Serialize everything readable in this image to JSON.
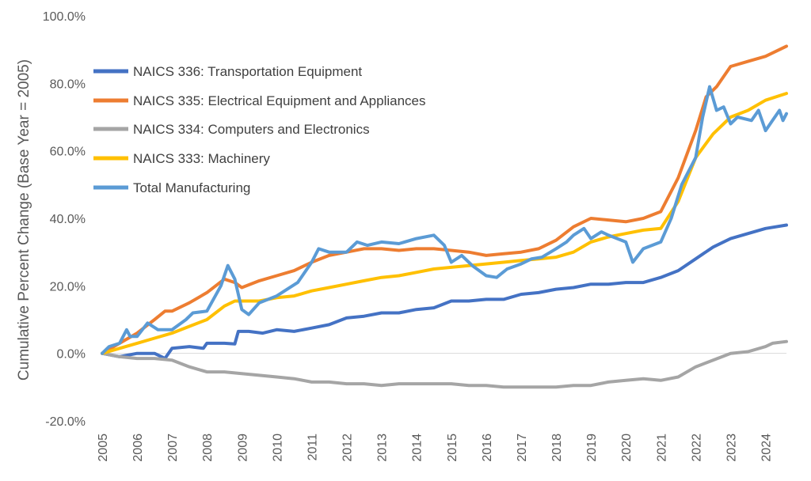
{
  "chart_data": {
    "type": "line",
    "title": "",
    "xlabel": "",
    "ylabel": "Cumulative Percent Change (Base Year = 2005)",
    "xlim": [
      2005,
      2024.6
    ],
    "ylim": [
      -20,
      100
    ],
    "x_ticks": [
      "2005",
      "2006",
      "2007",
      "2008",
      "2009",
      "2010",
      "2011",
      "2012",
      "2013",
      "2014",
      "2015",
      "2016",
      "2017",
      "2018",
      "2019",
      "2020",
      "2021",
      "2022",
      "2023",
      "2024"
    ],
    "y_ticks": [
      "-20.0%",
      "0.0%",
      "20.0%",
      "40.0%",
      "60.0%",
      "80.0%",
      "100.0%"
    ],
    "grid": false,
    "legend_position": "top-left",
    "series": [
      {
        "name": "NAICS 336: Transportation Equipment",
        "color": "#4472C4",
        "points": [
          [
            2005,
            0
          ],
          [
            2005.5,
            -1
          ],
          [
            2006,
            0
          ],
          [
            2006.5,
            0
          ],
          [
            2006.8,
            -1.5
          ],
          [
            2007,
            1.5
          ],
          [
            2007.5,
            2
          ],
          [
            2007.9,
            1.5
          ],
          [
            2008,
            3
          ],
          [
            2008.5,
            3
          ],
          [
            2008.8,
            2.8
          ],
          [
            2008.9,
            6.5
          ],
          [
            2009.2,
            6.5
          ],
          [
            2009.6,
            6
          ],
          [
            2010,
            7
          ],
          [
            2010.5,
            6.5
          ],
          [
            2011,
            7.5
          ],
          [
            2011.5,
            8.5
          ],
          [
            2012,
            10.5
          ],
          [
            2012.5,
            11
          ],
          [
            2013,
            12
          ],
          [
            2013.5,
            12
          ],
          [
            2014,
            13
          ],
          [
            2014.5,
            13.5
          ],
          [
            2015,
            15.5
          ],
          [
            2015.5,
            15.5
          ],
          [
            2016,
            16
          ],
          [
            2016.5,
            16
          ],
          [
            2017,
            17.5
          ],
          [
            2017.5,
            18
          ],
          [
            2018,
            19
          ],
          [
            2018.5,
            19.5
          ],
          [
            2019,
            20.5
          ],
          [
            2019.5,
            20.5
          ],
          [
            2020,
            21
          ],
          [
            2020.5,
            21
          ],
          [
            2021,
            22.5
          ],
          [
            2021.5,
            24.5
          ],
          [
            2022,
            28
          ],
          [
            2022.5,
            31.5
          ],
          [
            2023,
            34
          ],
          [
            2023.5,
            35.5
          ],
          [
            2024,
            37
          ],
          [
            2024.6,
            38
          ]
        ]
      },
      {
        "name": "NAICS 335: Electrical Equipment and Appliances",
        "color": "#ED7D31",
        "points": [
          [
            2005,
            0
          ],
          [
            2005.5,
            3
          ],
          [
            2006,
            6
          ],
          [
            2006.5,
            10
          ],
          [
            2006.8,
            12.5
          ],
          [
            2007,
            12.5
          ],
          [
            2007.5,
            15
          ],
          [
            2008,
            18
          ],
          [
            2008.5,
            22
          ],
          [
            2008.8,
            21
          ],
          [
            2009,
            19.5
          ],
          [
            2009.5,
            21.5
          ],
          [
            2010,
            23
          ],
          [
            2010.5,
            24.5
          ],
          [
            2011,
            27
          ],
          [
            2011.5,
            29
          ],
          [
            2012,
            30
          ],
          [
            2012.5,
            31
          ],
          [
            2013,
            31
          ],
          [
            2013.5,
            30.5
          ],
          [
            2014,
            31
          ],
          [
            2014.5,
            31
          ],
          [
            2015,
            30.5
          ],
          [
            2015.5,
            30
          ],
          [
            2016,
            29
          ],
          [
            2016.5,
            29.5
          ],
          [
            2017,
            30
          ],
          [
            2017.5,
            31
          ],
          [
            2018,
            33.5
          ],
          [
            2018.5,
            37.5
          ],
          [
            2019,
            40
          ],
          [
            2019.5,
            39.5
          ],
          [
            2020,
            39
          ],
          [
            2020.5,
            40
          ],
          [
            2021,
            42
          ],
          [
            2021.5,
            52
          ],
          [
            2022,
            66
          ],
          [
            2022.3,
            76
          ],
          [
            2022.6,
            79
          ],
          [
            2023,
            85
          ],
          [
            2023.5,
            86.5
          ],
          [
            2024,
            88
          ],
          [
            2024.6,
            91
          ]
        ]
      },
      {
        "name": "NAICS 334: Computers and Electronics",
        "color": "#A5A5A5",
        "points": [
          [
            2005,
            0
          ],
          [
            2005.5,
            -1
          ],
          [
            2006,
            -1.5
          ],
          [
            2006.5,
            -1.5
          ],
          [
            2007,
            -2
          ],
          [
            2007.5,
            -4
          ],
          [
            2008,
            -5.5
          ],
          [
            2008.5,
            -5.5
          ],
          [
            2009,
            -6
          ],
          [
            2009.5,
            -6.5
          ],
          [
            2010,
            -7
          ],
          [
            2010.5,
            -7.5
          ],
          [
            2011,
            -8.5
          ],
          [
            2011.5,
            -8.5
          ],
          [
            2012,
            -9
          ],
          [
            2012.5,
            -9
          ],
          [
            2013,
            -9.5
          ],
          [
            2013.5,
            -9
          ],
          [
            2014,
            -9
          ],
          [
            2014.5,
            -9
          ],
          [
            2015,
            -9
          ],
          [
            2015.5,
            -9.5
          ],
          [
            2016,
            -9.5
          ],
          [
            2016.5,
            -10
          ],
          [
            2017,
            -10
          ],
          [
            2017.5,
            -10
          ],
          [
            2018,
            -10
          ],
          [
            2018.5,
            -9.5
          ],
          [
            2019,
            -9.5
          ],
          [
            2019.5,
            -8.5
          ],
          [
            2020,
            -8
          ],
          [
            2020.5,
            -7.5
          ],
          [
            2021,
            -8
          ],
          [
            2021.5,
            -7
          ],
          [
            2022,
            -4
          ],
          [
            2022.5,
            -2
          ],
          [
            2023,
            0
          ],
          [
            2023.5,
            0.5
          ],
          [
            2024,
            2
          ],
          [
            2024.2,
            3
          ],
          [
            2024.6,
            3.5
          ]
        ]
      },
      {
        "name": "NAICS 333: Machinery",
        "color": "#FFC000",
        "points": [
          [
            2005,
            0
          ],
          [
            2005.5,
            1.5
          ],
          [
            2006,
            3
          ],
          [
            2006.5,
            4.5
          ],
          [
            2007,
            6
          ],
          [
            2007.5,
            8
          ],
          [
            2008,
            10
          ],
          [
            2008.5,
            14
          ],
          [
            2008.8,
            15.5
          ],
          [
            2009,
            15.5
          ],
          [
            2009.5,
            15.5
          ],
          [
            2010,
            16.5
          ],
          [
            2010.5,
            17
          ],
          [
            2011,
            18.5
          ],
          [
            2011.5,
            19.5
          ],
          [
            2012,
            20.5
          ],
          [
            2012.5,
            21.5
          ],
          [
            2013,
            22.5
          ],
          [
            2013.5,
            23
          ],
          [
            2014,
            24
          ],
          [
            2014.5,
            25
          ],
          [
            2015,
            25.5
          ],
          [
            2015.5,
            26
          ],
          [
            2016,
            26.5
          ],
          [
            2016.5,
            27
          ],
          [
            2017,
            27.5
          ],
          [
            2017.5,
            28
          ],
          [
            2018,
            28.5
          ],
          [
            2018.5,
            30
          ],
          [
            2019,
            33
          ],
          [
            2019.5,
            34.5
          ],
          [
            2020,
            35.5
          ],
          [
            2020.5,
            36.5
          ],
          [
            2021,
            37
          ],
          [
            2021.5,
            45
          ],
          [
            2022,
            58
          ],
          [
            2022.5,
            65
          ],
          [
            2023,
            70
          ],
          [
            2023.5,
            72
          ],
          [
            2024,
            75
          ],
          [
            2024.6,
            77
          ]
        ]
      },
      {
        "name": "Total Manufacturing",
        "color": "#5B9BD5",
        "points": [
          [
            2005,
            0
          ],
          [
            2005.2,
            2
          ],
          [
            2005.5,
            3
          ],
          [
            2005.7,
            7
          ],
          [
            2005.8,
            5
          ],
          [
            2006,
            5
          ],
          [
            2006.3,
            9
          ],
          [
            2006.6,
            7
          ],
          [
            2007,
            7
          ],
          [
            2007.4,
            10
          ],
          [
            2007.6,
            12
          ],
          [
            2008,
            12.5
          ],
          [
            2008.4,
            20
          ],
          [
            2008.6,
            26
          ],
          [
            2008.8,
            22
          ],
          [
            2009,
            13
          ],
          [
            2009.2,
            11.5
          ],
          [
            2009.5,
            15
          ],
          [
            2010,
            17
          ],
          [
            2010.3,
            19
          ],
          [
            2010.6,
            21
          ],
          [
            2011,
            27
          ],
          [
            2011.2,
            31
          ],
          [
            2011.5,
            30
          ],
          [
            2012,
            30
          ],
          [
            2012.3,
            33
          ],
          [
            2012.6,
            32
          ],
          [
            2013,
            33
          ],
          [
            2013.5,
            32.5
          ],
          [
            2014,
            34
          ],
          [
            2014.5,
            35
          ],
          [
            2014.8,
            32
          ],
          [
            2015,
            27
          ],
          [
            2015.3,
            29
          ],
          [
            2015.6,
            26
          ],
          [
            2016,
            23
          ],
          [
            2016.3,
            22.5
          ],
          [
            2016.6,
            25
          ],
          [
            2017,
            26.5
          ],
          [
            2017.3,
            28
          ],
          [
            2017.6,
            28.5
          ],
          [
            2018,
            31
          ],
          [
            2018.3,
            33
          ],
          [
            2018.5,
            35
          ],
          [
            2018.8,
            37
          ],
          [
            2019,
            34
          ],
          [
            2019.3,
            36
          ],
          [
            2019.5,
            35
          ],
          [
            2020,
            33
          ],
          [
            2020.2,
            27
          ],
          [
            2020.5,
            31
          ],
          [
            2021,
            33
          ],
          [
            2021.3,
            40
          ],
          [
            2021.6,
            50
          ],
          [
            2022,
            58
          ],
          [
            2022.2,
            70
          ],
          [
            2022.4,
            79
          ],
          [
            2022.6,
            72
          ],
          [
            2022.8,
            73
          ],
          [
            2023,
            68
          ],
          [
            2023.2,
            70
          ],
          [
            2023.6,
            69
          ],
          [
            2023.8,
            72
          ],
          [
            2024,
            66
          ],
          [
            2024.2,
            69
          ],
          [
            2024.4,
            72
          ],
          [
            2024.5,
            69
          ],
          [
            2024.6,
            71
          ]
        ]
      }
    ]
  }
}
